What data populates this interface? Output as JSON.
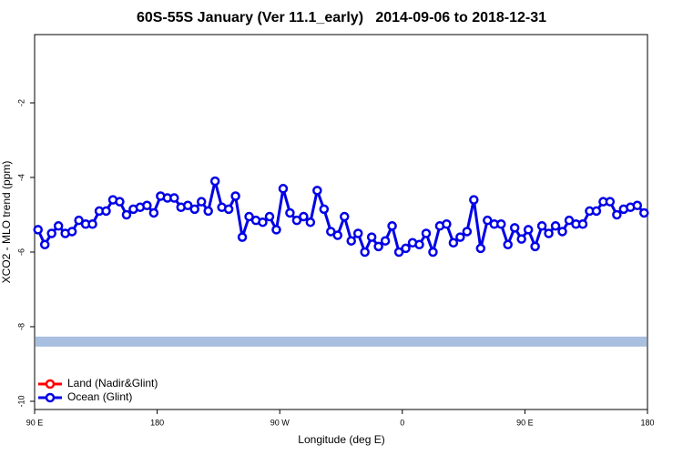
{
  "chart_data": {
    "type": "line",
    "title": "60S-55S January (Ver 11.1_early)   2014-09-06 to 2018-12-31",
    "x_label": "Longitude (deg E)",
    "y_label": "XCO2 - MLO trend (ppm)",
    "xlim": [
      90,
      540
    ],
    "ylim": [
      -10.22,
      -0.17
    ],
    "xticks": [
      {
        "value": 90,
        "label": "90 E"
      },
      180,
      {
        "value": 270,
        "label": "90 W"
      },
      {
        "value": 360,
        "label": "0"
      },
      {
        "value": 450,
        "label": "90 E"
      },
      {
        "value": 540,
        "label": "180"
      }
    ],
    "yticks": [
      -2,
      -4,
      -6,
      -8,
      -10
    ],
    "band": {
      "value": -8.4,
      "color": "#a9bfe0"
    },
    "legend": "bottom-left",
    "x": [
      92.5,
      97.5,
      102.5,
      107.5,
      112.5,
      117.5,
      122.5,
      127.5,
      132.5,
      137.5,
      142.5,
      147.5,
      152.5,
      157.5,
      162.5,
      167.5,
      172.5,
      177.5,
      182.5,
      187.5,
      192.5,
      197.5,
      202.5,
      207.5,
      212.5,
      217.5,
      222.5,
      227.5,
      232.5,
      237.5,
      242.5,
      247.5,
      252.5,
      257.5,
      262.5,
      267.5,
      272.5,
      277.5,
      282.5,
      287.5,
      292.5,
      297.5,
      302.5,
      307.5,
      312.5,
      317.5,
      322.5,
      327.5,
      332.5,
      337.5,
      342.5,
      347.5,
      352.5,
      357.5,
      362.5,
      367.5,
      372.5,
      377.5,
      382.5,
      387.5,
      392.5,
      397.5,
      402.5,
      407.5,
      412.5,
      417.5,
      422.5,
      427.5,
      432.5,
      437.5,
      442.5,
      447.5,
      452.5,
      457.5,
      462.5,
      467.5,
      472.5,
      477.5,
      482.5,
      487.5,
      492.5,
      497.5,
      502.5,
      507.5,
      512.5,
      517.5,
      522.5,
      527.5,
      532.5,
      537.5
    ],
    "series": [
      {
        "name": "Land (Nadir&Glint)",
        "color": "#ff0000",
        "values": [
          null,
          null,
          null,
          null,
          null,
          null,
          null,
          null,
          null,
          null,
          null,
          null,
          null,
          null,
          null,
          null,
          null,
          null,
          null,
          null,
          null,
          null,
          null,
          null,
          null,
          null,
          null,
          null,
          null,
          null,
          null,
          null,
          null,
          null,
          null,
          null,
          null,
          null,
          null,
          null,
          null,
          null,
          null,
          null,
          null,
          null,
          null,
          null,
          null,
          null,
          null,
          null,
          null,
          null,
          null,
          null,
          null,
          null,
          null,
          null,
          null,
          null,
          null,
          null,
          null,
          null,
          null,
          null,
          null,
          null,
          null,
          null,
          null,
          null,
          null,
          null,
          null,
          null,
          null,
          null,
          null,
          null,
          null,
          null,
          null,
          null,
          null,
          null,
          null,
          null
        ]
      },
      {
        "name": "Ocean (Glint)",
        "color": "#0000e6",
        "values": [
          -5.4,
          -5.8,
          -5.5,
          -5.3,
          -5.5,
          -5.45,
          -5.15,
          -5.25,
          -5.25,
          -4.9,
          -4.9,
          -4.6,
          -4.65,
          -5.0,
          -4.85,
          -4.8,
          -4.75,
          -4.95,
          -4.5,
          -4.55,
          -4.55,
          -4.8,
          -4.75,
          -4.85,
          -4.65,
          -4.9,
          -4.1,
          -4.8,
          -4.85,
          -4.5,
          -5.6,
          -5.05,
          -5.15,
          -5.2,
          -5.05,
          -5.4,
          -4.3,
          -4.95,
          -5.15,
          -5.05,
          -5.2,
          -4.35,
          -4.85,
          -5.45,
          -5.55,
          -5.05,
          -5.7,
          -5.5,
          -6.0,
          -5.6,
          -5.85,
          -5.7,
          -5.3,
          -6.0,
          -5.9,
          -5.75,
          -5.8,
          -5.5,
          -6.0,
          -5.3,
          -5.25,
          -5.75,
          -5.6,
          -5.45,
          -4.6,
          -5.9,
          -5.15,
          -5.25,
          -5.25,
          -5.8,
          -5.35,
          -5.65,
          -5.4,
          -5.85,
          -5.3,
          -5.5,
          -5.3,
          -5.45,
          -5.15,
          -5.25,
          -5.25,
          -4.9,
          -4.9,
          -4.65,
          -4.65,
          -5.0,
          -4.85,
          -4.8,
          -4.75,
          -4.95
        ]
      }
    ]
  }
}
